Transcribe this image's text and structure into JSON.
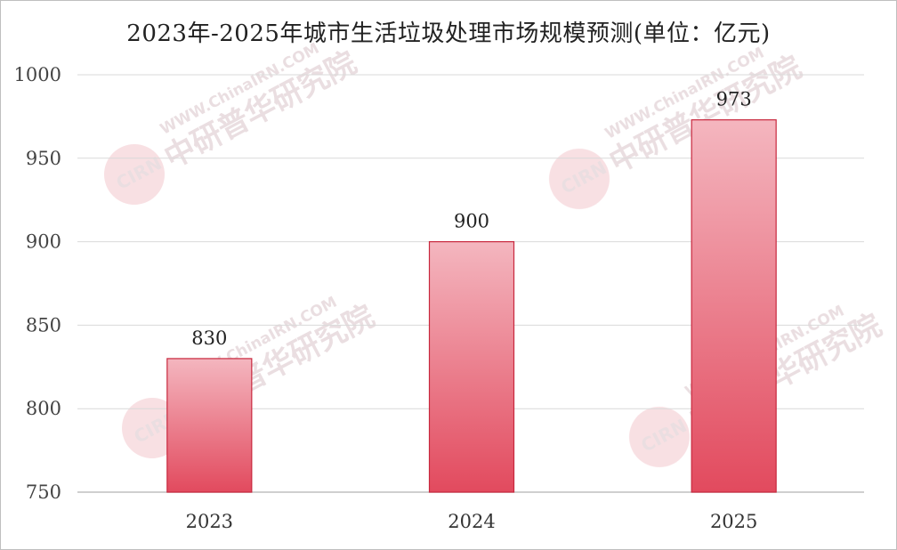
{
  "chart_data": {
    "type": "bar",
    "title": "2023年-2025年城市生活垃圾处理市场规模预测(单位：亿元)",
    "categories": [
      "2023",
      "2024",
      "2025"
    ],
    "values": [
      830,
      900,
      973
    ],
    "data_labels": [
      "830",
      "900",
      "973"
    ],
    "ylim": [
      750,
      1000
    ],
    "yticks": [
      750,
      800,
      850,
      900,
      950,
      1000
    ],
    "ytick_labels": [
      "750",
      "800",
      "850",
      "900",
      "950",
      "1000"
    ],
    "grid": true,
    "legend": "none"
  },
  "watermark": {
    "logo": "CIRN",
    "name": "中研普华研究院",
    "url": "WWW.ChinaIRN.COM"
  },
  "colors": {
    "bar_top": "#f4b6bf",
    "bar_bottom": "#e24a5e",
    "bar_border": "#c8283e",
    "grid": "#d9d9d9"
  }
}
